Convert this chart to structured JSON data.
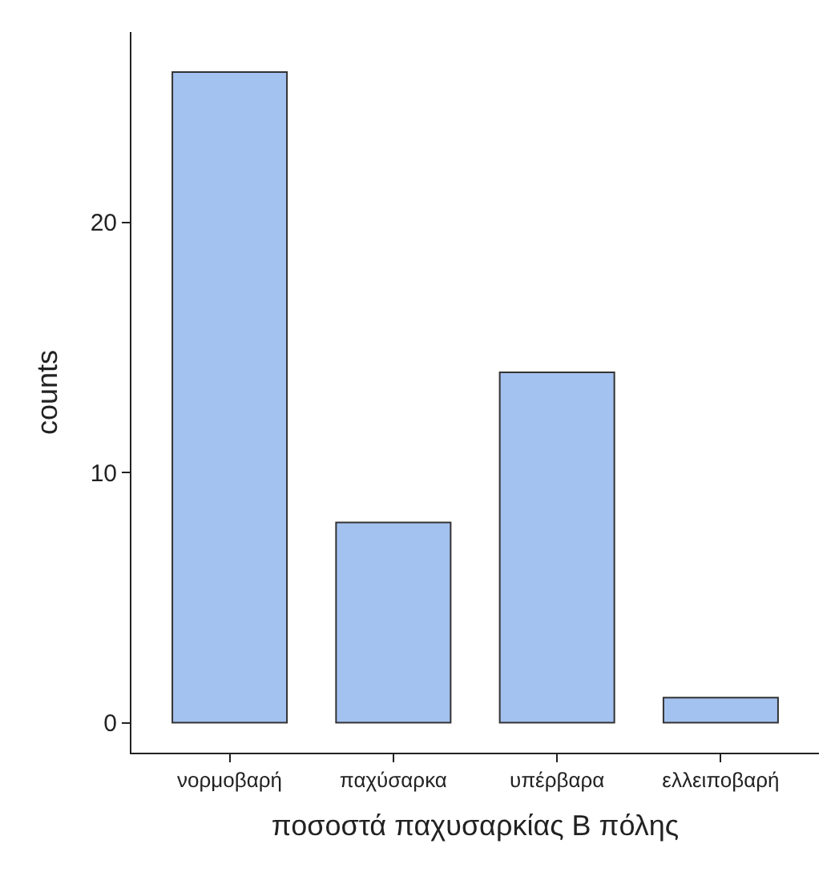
{
  "chart_data": {
    "type": "bar",
    "xlabel": "ποσοστά παχυσαρκίας Β πόλης",
    "ylabel": "counts",
    "categories": [
      "νορμοβαρή",
      "παχύσαρκα",
      "υπέρβαρα",
      "ελλειποβαρή"
    ],
    "values": [
      26,
      8,
      14,
      1
    ],
    "color": "#a4c2f0",
    "ylim": [
      -1.2,
      27.6
    ],
    "yticks": [
      0,
      10,
      20
    ]
  }
}
